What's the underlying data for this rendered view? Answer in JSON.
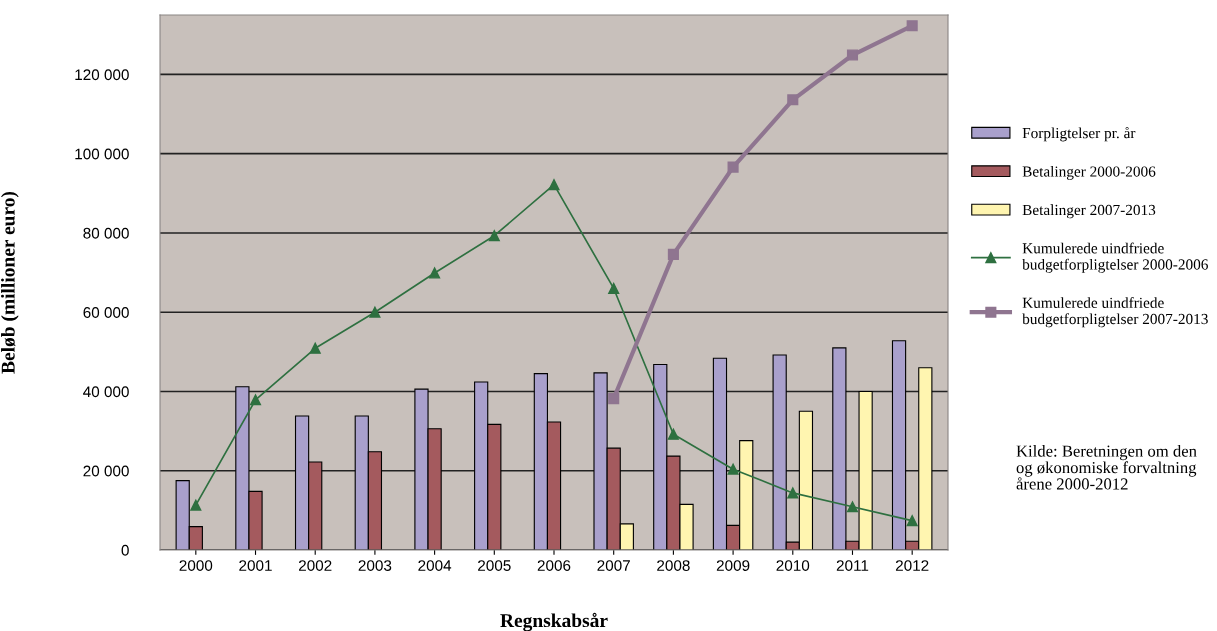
{
  "chart_data": {
    "type": "bar",
    "xlabel": "Regnskabsår",
    "ylabel": "Beløb (millioner euro)",
    "categories": [
      "2000",
      "2001",
      "2002",
      "2003",
      "2004",
      "2005",
      "2006",
      "2007",
      "2008",
      "2009",
      "2010",
      "2011",
      "2012"
    ],
    "series": [
      {
        "name": "Forpligtelser pr. år",
        "color": "#a9a0cc",
        "values": [
          17500,
          41200,
          33800,
          33800,
          40600,
          42400,
          44500,
          44700,
          46800,
          48400,
          49200,
          51000,
          52800
        ]
      },
      {
        "name": "Betalinger 2000-2006",
        "color": "#a45a5e",
        "values": [
          5900,
          14800,
          22200,
          24800,
          30600,
          31700,
          32300,
          25700,
          23700,
          6200,
          2000,
          2200,
          2200
        ]
      },
      {
        "name": "Betalinger 2007-2013",
        "color": "#fff5b0",
        "values": [
          null,
          null,
          null,
          null,
          null,
          null,
          null,
          6600,
          11500,
          27600,
          35000,
          40000,
          46000
        ]
      },
      {
        "name": "Kumulerede uindfriede\nbudgetforpligtelser 2000-2006",
        "type": "line",
        "color": "#2e7040",
        "marker": "triangle",
        "values": [
          11300,
          37900,
          50900,
          60000,
          69900,
          79300,
          92200,
          66000,
          29200,
          20400,
          14400,
          10900,
          7400
        ]
      },
      {
        "name": "Kumulerede uindfriede\nbudgetforpligtelser 2007-2013",
        "type": "line",
        "color": "#8f7590",
        "marker": "square",
        "values": [
          null,
          null,
          null,
          null,
          null,
          null,
          null,
          38200,
          74600,
          96600,
          113600,
          124900,
          132300
        ]
      }
    ],
    "ylim": [
      0,
      135000
    ],
    "yticks": [
      {
        "value": 0,
        "label": "0"
      },
      {
        "value": 20000,
        "label": "20 000"
      },
      {
        "value": 40000,
        "label": "40 000"
      },
      {
        "value": 60000,
        "label": "60 000"
      },
      {
        "value": 80000,
        "label": "80 000"
      },
      {
        "value": 100000,
        "label": "100 000"
      },
      {
        "value": 120000,
        "label": "120 000"
      }
    ],
    "grid": "y",
    "legend": "right",
    "annotations": [
      "Kilde: Beretningen om den\nog økonomiske forvaltning\nårene 2000-2012"
    ]
  }
}
